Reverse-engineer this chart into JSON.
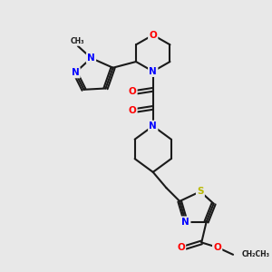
{
  "bg_color": "#e8e8e8",
  "bond_color": "#1a1a1a",
  "bond_width": 1.5,
  "atom_colors": {
    "N": "#0000ff",
    "O": "#ff0000",
    "S": "#b8b800",
    "C": "#1a1a1a"
  },
  "font_size_atom": 7.5,
  "font_size_small": 6.0
}
